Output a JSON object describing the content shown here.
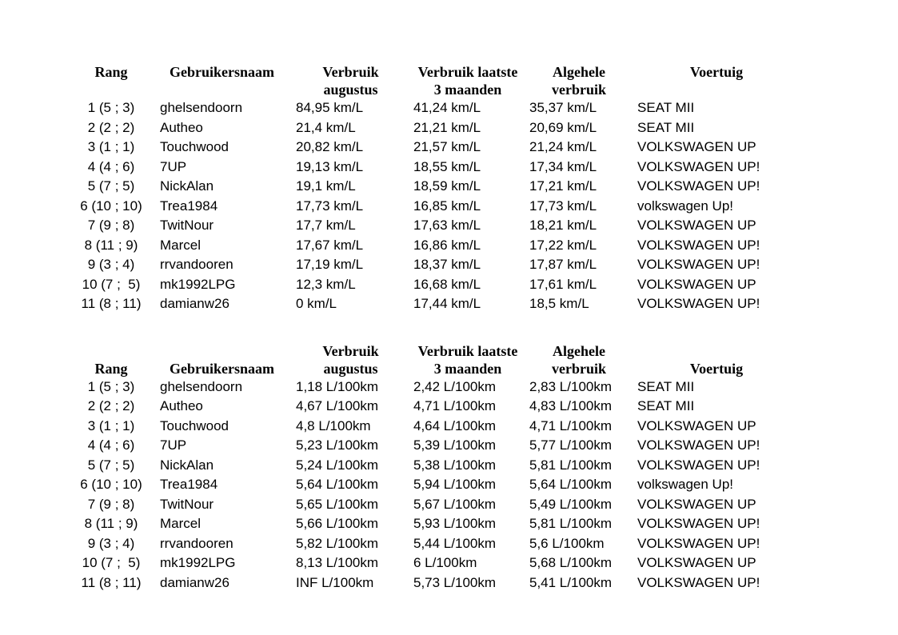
{
  "page": {
    "background": "#ffffff",
    "text_color": "#000000"
  },
  "tables": [
    {
      "name": "verbruik-km-per-liter",
      "unit": "km/L",
      "headers": {
        "rank": {
          "top": "Rang",
          "bottom": ""
        },
        "user": {
          "top": "Gebruikersnaam",
          "bottom": ""
        },
        "aug": {
          "top": "Verbruik",
          "bottom": "augustus"
        },
        "last3": {
          "top": "Verbruik laatste",
          "bottom": "3 maanden"
        },
        "overall": {
          "top": "Algehele",
          "bottom": "verbruik"
        },
        "vehicle": {
          "top": "Voertuig",
          "bottom": ""
        }
      },
      "rows": [
        [
          "1 (5 ; 3)",
          "ghelsendoorn",
          "84,95 km/L",
          "41,24 km/L",
          "35,37 km/L",
          "SEAT MII"
        ],
        [
          "2 (2 ; 2)",
          "Autheo",
          "21,4 km/L",
          "21,21 km/L",
          "20,69 km/L",
          "SEAT MII"
        ],
        [
          "3 (1 ; 1)",
          "Touchwood",
          "20,82 km/L",
          "21,57 km/L",
          "21,24 km/L",
          "VOLKSWAGEN UP"
        ],
        [
          "4 (4 ; 6)",
          "7UP",
          "19,13 km/L",
          "18,55 km/L",
          "17,34 km/L",
          "VOLKSWAGEN UP!"
        ],
        [
          "5 (7 ; 5)",
          "NickAlan",
          "19,1 km/L",
          "18,59 km/L",
          "17,21 km/L",
          "VOLKSWAGEN UP!"
        ],
        [
          "6 (10 ; 10)",
          "Trea1984",
          "17,73 km/L",
          "16,85 km/L",
          "17,73 km/L",
          "volkswagen Up!"
        ],
        [
          "7 (9 ; 8)",
          "TwitNour",
          "17,7 km/L",
          "17,63 km/L",
          "18,21 km/L",
          "VOLKSWAGEN UP"
        ],
        [
          "8 (11 ; 9)",
          "Marcel",
          "17,67 km/L",
          "16,86 km/L",
          "17,22 km/L",
          "VOLKSWAGEN UP!"
        ],
        [
          "9 (3 ; 4)",
          "rrvandooren",
          "17,19 km/L",
          "18,37 km/L",
          "17,87 km/L",
          "VOLKSWAGEN UP!"
        ],
        [
          "10 (7 ;  5)",
          "mk1992LPG",
          "12,3 km/L",
          "16,68 km/L",
          "17,61 km/L",
          "VOLKSWAGEN UP"
        ],
        [
          "11 (8 ; 11)",
          "damianw26",
          "0 km/L",
          "17,44 km/L",
          "18,5 km/L",
          "VOLKSWAGEN UP!"
        ]
      ]
    },
    {
      "name": "verbruik-liter-per-100km",
      "unit": "L/100km",
      "headers": {
        "rank": {
          "top": "",
          "bottom": "Rang"
        },
        "user": {
          "top": "",
          "bottom": "Gebruikersnaam"
        },
        "aug": {
          "top": "Verbruik",
          "bottom": "augustus"
        },
        "last3": {
          "top": "Verbruik laatste",
          "bottom": "3 maanden"
        },
        "overall": {
          "top": "Algehele",
          "bottom": "verbruik"
        },
        "vehicle": {
          "top": "",
          "bottom": "Voertuig"
        }
      },
      "rows": [
        [
          "1 (5 ; 3)",
          "ghelsendoorn",
          "1,18 L/100km",
          "2,42 L/100km",
          "2,83 L/100km",
          "SEAT MII"
        ],
        [
          "2 (2 ; 2)",
          "Autheo",
          "4,67 L/100km",
          "4,71 L/100km",
          "4,83 L/100km",
          "SEAT MII"
        ],
        [
          "3 (1 ; 1)",
          "Touchwood",
          "4,8 L/100km",
          "4,64 L/100km",
          "4,71 L/100km",
          "VOLKSWAGEN UP"
        ],
        [
          "4 (4 ; 6)",
          "7UP",
          "5,23 L/100km",
          "5,39 L/100km",
          "5,77 L/100km",
          "VOLKSWAGEN UP!"
        ],
        [
          "5 (7 ; 5)",
          "NickAlan",
          "5,24 L/100km",
          "5,38 L/100km",
          "5,81 L/100km",
          "VOLKSWAGEN UP!"
        ],
        [
          "6 (10 ; 10)",
          "Trea1984",
          "5,64 L/100km",
          "5,94 L/100km",
          "5,64 L/100km",
          "volkswagen Up!"
        ],
        [
          "7 (9 ; 8)",
          "TwitNour",
          "5,65 L/100km",
          "5,67 L/100km",
          "5,49 L/100km",
          "VOLKSWAGEN UP"
        ],
        [
          "8 (11 ; 9)",
          "Marcel",
          "5,66 L/100km",
          "5,93 L/100km",
          "5,81 L/100km",
          "VOLKSWAGEN UP!"
        ],
        [
          "9 (3 ; 4)",
          "rrvandooren",
          "5,82 L/100km",
          "5,44 L/100km",
          "5,6 L/100km",
          "VOLKSWAGEN UP!"
        ],
        [
          "10 (7 ;  5)",
          "mk1992LPG",
          "8,13 L/100km",
          "6 L/100km",
          "5,68 L/100km",
          "VOLKSWAGEN UP"
        ],
        [
          "11 (8 ; 11)",
          "damianw26",
          "INF L/100km",
          "5,73 L/100km",
          "5,41 L/100km",
          "VOLKSWAGEN UP!"
        ]
      ]
    }
  ]
}
